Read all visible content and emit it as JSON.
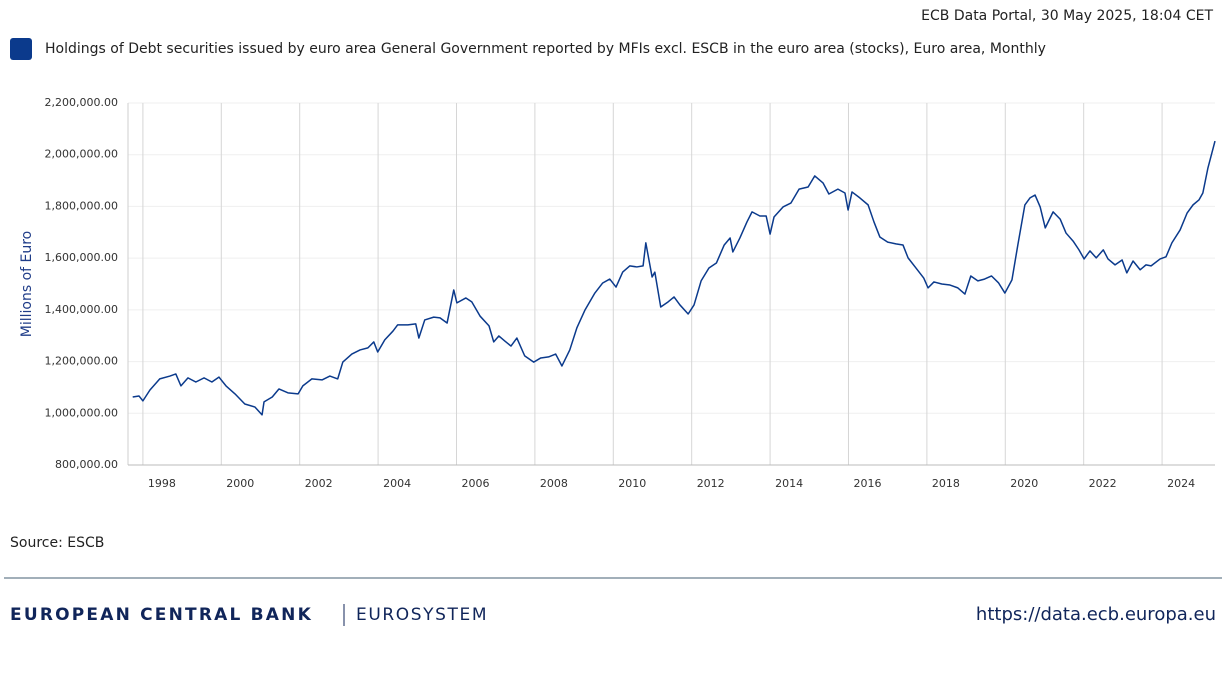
{
  "header": "ECB Data Portal, 30 May 2025, 18:04 CET",
  "source": "Source: ESCB",
  "footer": {
    "brand": "EUROPEAN CENTRAL BANK",
    "system": "EUROSYSTEM",
    "url": "https://data.ecb.europa.eu"
  },
  "chart_data": {
    "type": "line",
    "y_label": "Millions of Euro",
    "xlim": [
      1997.62,
      2025.35
    ],
    "xticks": [
      1998,
      2000,
      2002,
      2004,
      2006,
      2008,
      2010,
      2012,
      2014,
      2016,
      2018,
      2020,
      2022,
      2024
    ],
    "ylim": [
      800000,
      2200000
    ],
    "yticks": [
      {
        "value": 800000,
        "label": "800,000.00"
      },
      {
        "value": 1000000,
        "label": "1,000,000.00"
      },
      {
        "value": 1200000,
        "label": "1,200,000.00"
      },
      {
        "value": 1400000,
        "label": "1,400,000.00"
      },
      {
        "value": 1600000,
        "label": "1,600,000.00"
      },
      {
        "value": 1800000,
        "label": "1,800,000.00"
      },
      {
        "value": 2000000,
        "label": "2,000,000.00"
      },
      {
        "value": 2200000,
        "label": "2,200,000.00"
      }
    ],
    "grid": true,
    "legend": "top-left",
    "x": [
      1997.74,
      1997.9,
      1998.0,
      1998.18,
      1998.43,
      1998.69,
      1998.84,
      1998.97,
      1999.15,
      1999.35,
      1999.56,
      1999.76,
      1999.94,
      2000.12,
      2000.35,
      2000.6,
      2000.86,
      2001.04,
      2001.09,
      2001.3,
      2001.47,
      2001.7,
      2001.96,
      2002.08,
      2002.31,
      2002.57,
      2002.77,
      2002.97,
      2003.1,
      2003.33,
      2003.54,
      2003.74,
      2003.89,
      2003.99,
      2004.17,
      2004.38,
      2004.5,
      2004.76,
      2004.96,
      2005.04,
      2005.19,
      2005.42,
      2005.58,
      2005.76,
      2005.93,
      2006.01,
      2006.24,
      2006.39,
      2006.6,
      2006.83,
      2006.95,
      2007.08,
      2007.23,
      2007.39,
      2007.54,
      2007.74,
      2007.97,
      2008.15,
      2008.35,
      2008.53,
      2008.69,
      2008.89,
      2009.07,
      2009.28,
      2009.53,
      2009.73,
      2009.91,
      2010.07,
      2010.24,
      2010.42,
      2010.6,
      2010.76,
      2010.83,
      2010.99,
      2011.06,
      2011.21,
      2011.4,
      2011.55,
      2011.7,
      2011.91,
      2012.06,
      2012.24,
      2012.44,
      2012.63,
      2012.83,
      2012.98,
      2013.05,
      2013.23,
      2013.41,
      2013.54,
      2013.74,
      2013.9,
      2014.0,
      2014.1,
      2014.33,
      2014.53,
      2014.74,
      2014.97,
      2015.14,
      2015.35,
      2015.5,
      2015.73,
      2015.91,
      2015.99,
      2016.09,
      2016.29,
      2016.5,
      2016.65,
      2016.8,
      2017.0,
      2017.21,
      2017.39,
      2017.52,
      2017.72,
      2017.92,
      2018.03,
      2018.18,
      2018.38,
      2018.59,
      2018.79,
      2018.97,
      2019.12,
      2019.3,
      2019.47,
      2019.65,
      2019.83,
      2019.99,
      2020.17,
      2020.32,
      2020.5,
      2020.63,
      2020.76,
      2020.89,
      2021.02,
      2021.22,
      2021.4,
      2021.55,
      2021.73,
      2021.88,
      2022.01,
      2022.16,
      2022.32,
      2022.5,
      2022.62,
      2022.8,
      2022.98,
      2023.1,
      2023.26,
      2023.44,
      2023.59,
      2023.72,
      2023.95,
      2024.1,
      2024.25,
      2024.46,
      2024.64,
      2024.79,
      2024.94,
      2025.04,
      2025.17,
      2025.35
    ],
    "series": [
      {
        "name": "Holdings of Debt securities issued by euro area General Government reported by MFIs excl. ESCB in the euro area (stocks), Euro area, Monthly",
        "color": "#0b3a8c",
        "values": [
          1063000,
          1067000,
          1048000,
          1090000,
          1133000,
          1144000,
          1152000,
          1106000,
          1137000,
          1121000,
          1137000,
          1121000,
          1140000,
          1106000,
          1075000,
          1036000,
          1024000,
          994000,
          1044000,
          1063000,
          1094000,
          1079000,
          1075000,
          1106000,
          1133000,
          1129000,
          1144000,
          1133000,
          1198000,
          1229000,
          1245000,
          1253000,
          1276000,
          1237000,
          1284000,
          1318000,
          1342000,
          1342000,
          1346000,
          1291000,
          1361000,
          1372000,
          1369000,
          1349000,
          1477000,
          1427000,
          1446000,
          1431000,
          1376000,
          1338000,
          1276000,
          1299000,
          1280000,
          1260000,
          1291000,
          1222000,
          1198000,
          1214000,
          1218000,
          1229000,
          1183000,
          1245000,
          1330000,
          1400000,
          1465000,
          1504000,
          1519000,
          1488000,
          1546000,
          1570000,
          1566000,
          1570000,
          1659000,
          1527000,
          1546000,
          1411000,
          1431000,
          1450000,
          1419000,
          1384000,
          1419000,
          1512000,
          1562000,
          1581000,
          1651000,
          1678000,
          1624000,
          1678000,
          1740000,
          1779000,
          1763000,
          1763000,
          1693000,
          1759000,
          1798000,
          1813000,
          1867000,
          1875000,
          1918000,
          1891000,
          1848000,
          1867000,
          1852000,
          1786000,
          1856000,
          1833000,
          1806000,
          1740000,
          1682000,
          1662000,
          1655000,
          1651000,
          1601000,
          1562000,
          1523000,
          1485000,
          1508000,
          1500000,
          1496000,
          1485000,
          1461000,
          1531000,
          1512000,
          1519000,
          1531000,
          1504000,
          1465000,
          1516000,
          1651000,
          1806000,
          1833000,
          1844000,
          1798000,
          1717000,
          1779000,
          1751000,
          1697000,
          1666000,
          1632000,
          1597000,
          1628000,
          1601000,
          1632000,
          1597000,
          1574000,
          1593000,
          1543000,
          1589000,
          1555000,
          1574000,
          1570000,
          1597000,
          1605000,
          1659000,
          1709000,
          1775000,
          1806000,
          1825000,
          1852000,
          1949000,
          2053000
        ]
      }
    ]
  }
}
